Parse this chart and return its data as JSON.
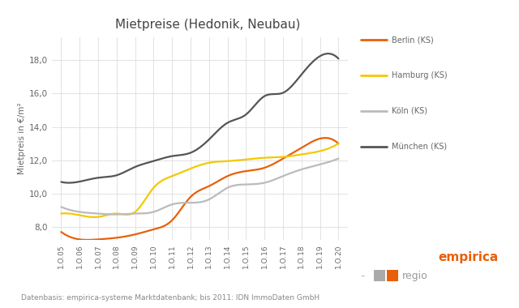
{
  "title": "Mietpreise (Hedonik, Neubau)",
  "ylabel": "Mietpreis in €/m²",
  "footnote": "Datenbasis: empirica-systeme Marktdatenbank; bis 2011: IDN ImmoDaten GmbH",
  "x_labels": [
    "1.O.05",
    "1.O.06",
    "1.O.07",
    "1.O.08",
    "1.O.09",
    "1.O.10",
    "1.O.11",
    "1.O.12",
    "1.O.13",
    "1.O.14",
    "1.O.15",
    "1.O.16",
    "1.O.17",
    "1.O.18",
    "1.O.19",
    "1.O.20"
  ],
  "ylim": [
    7.2,
    19.4
  ],
  "yticks": [
    8.0,
    10.0,
    12.0,
    14.0,
    16.0,
    18.0
  ],
  "series_order": [
    "Berlin (KS)",
    "Hamburg (KS)",
    "Köln (KS)",
    "München (KS)"
  ],
  "series": {
    "Berlin (KS)": {
      "color": "#E8600A",
      "values": [
        7.7,
        7.25,
        7.25,
        7.35,
        7.55,
        7.85,
        8.4,
        9.8,
        10.45,
        11.05,
        11.35,
        11.55,
        12.1,
        12.75,
        13.3,
        13.0
      ]
    },
    "Hamburg (KS)": {
      "color": "#F5C800",
      "values": [
        8.8,
        8.7,
        8.6,
        8.8,
        8.9,
        10.35,
        11.05,
        11.5,
        11.85,
        11.95,
        12.05,
        12.15,
        12.2,
        12.35,
        12.55,
        13.0
      ]
    },
    "Köln (KS)": {
      "color": "#BBBBBB",
      "values": [
        9.2,
        8.9,
        8.8,
        8.75,
        8.8,
        8.9,
        9.35,
        9.45,
        9.65,
        10.35,
        10.55,
        10.65,
        11.05,
        11.45,
        11.75,
        12.1
      ]
    },
    "München (KS)": {
      "color": "#555555",
      "values": [
        10.7,
        10.72,
        10.95,
        11.1,
        11.6,
        11.95,
        12.25,
        12.45,
        13.25,
        14.25,
        14.75,
        15.85,
        16.05,
        17.15,
        18.25,
        18.1
      ]
    }
  },
  "background_color": "#FFFFFF",
  "grid_color": "#DDDDDD",
  "empirica_color": "#E8600A",
  "regio_color": "#999999",
  "text_color": "#666666",
  "title_color": "#444444",
  "footnote_color": "#888888"
}
